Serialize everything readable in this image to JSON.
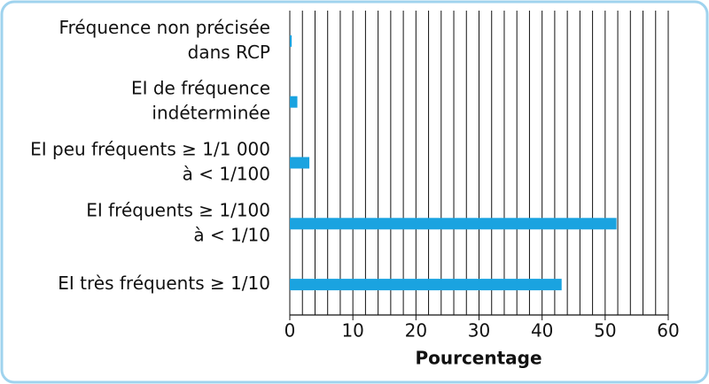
{
  "chart_data": {
    "type": "barh",
    "categories": [
      [
        "Fréquence non précisée",
        "dans RCP"
      ],
      [
        "EI de fréquence",
        "indéterminée"
      ],
      [
        "EI peu fréquents ≥ 1/1 000",
        "à < 1/100"
      ],
      [
        "EI fréquents ≥ 1/100",
        "à < 1/10"
      ],
      [
        "EI très fréquents ≥ 1/10"
      ]
    ],
    "values": [
      0.3,
      1.2,
      3.1,
      51.8,
      43.1
    ],
    "color": "#1aa3e0",
    "xlabel": "Pourcentage",
    "xlim": [
      0,
      60
    ],
    "xticks": [
      0,
      10,
      20,
      30,
      40,
      50,
      60
    ],
    "x_gridlines": [
      0,
      2,
      4,
      6,
      8,
      10,
      12,
      14,
      16,
      18,
      20,
      22,
      24,
      26,
      28,
      30,
      32,
      34,
      36,
      38,
      40,
      42,
      44,
      46,
      48,
      50,
      52,
      54,
      56,
      58,
      60
    ],
    "grid": true
  }
}
